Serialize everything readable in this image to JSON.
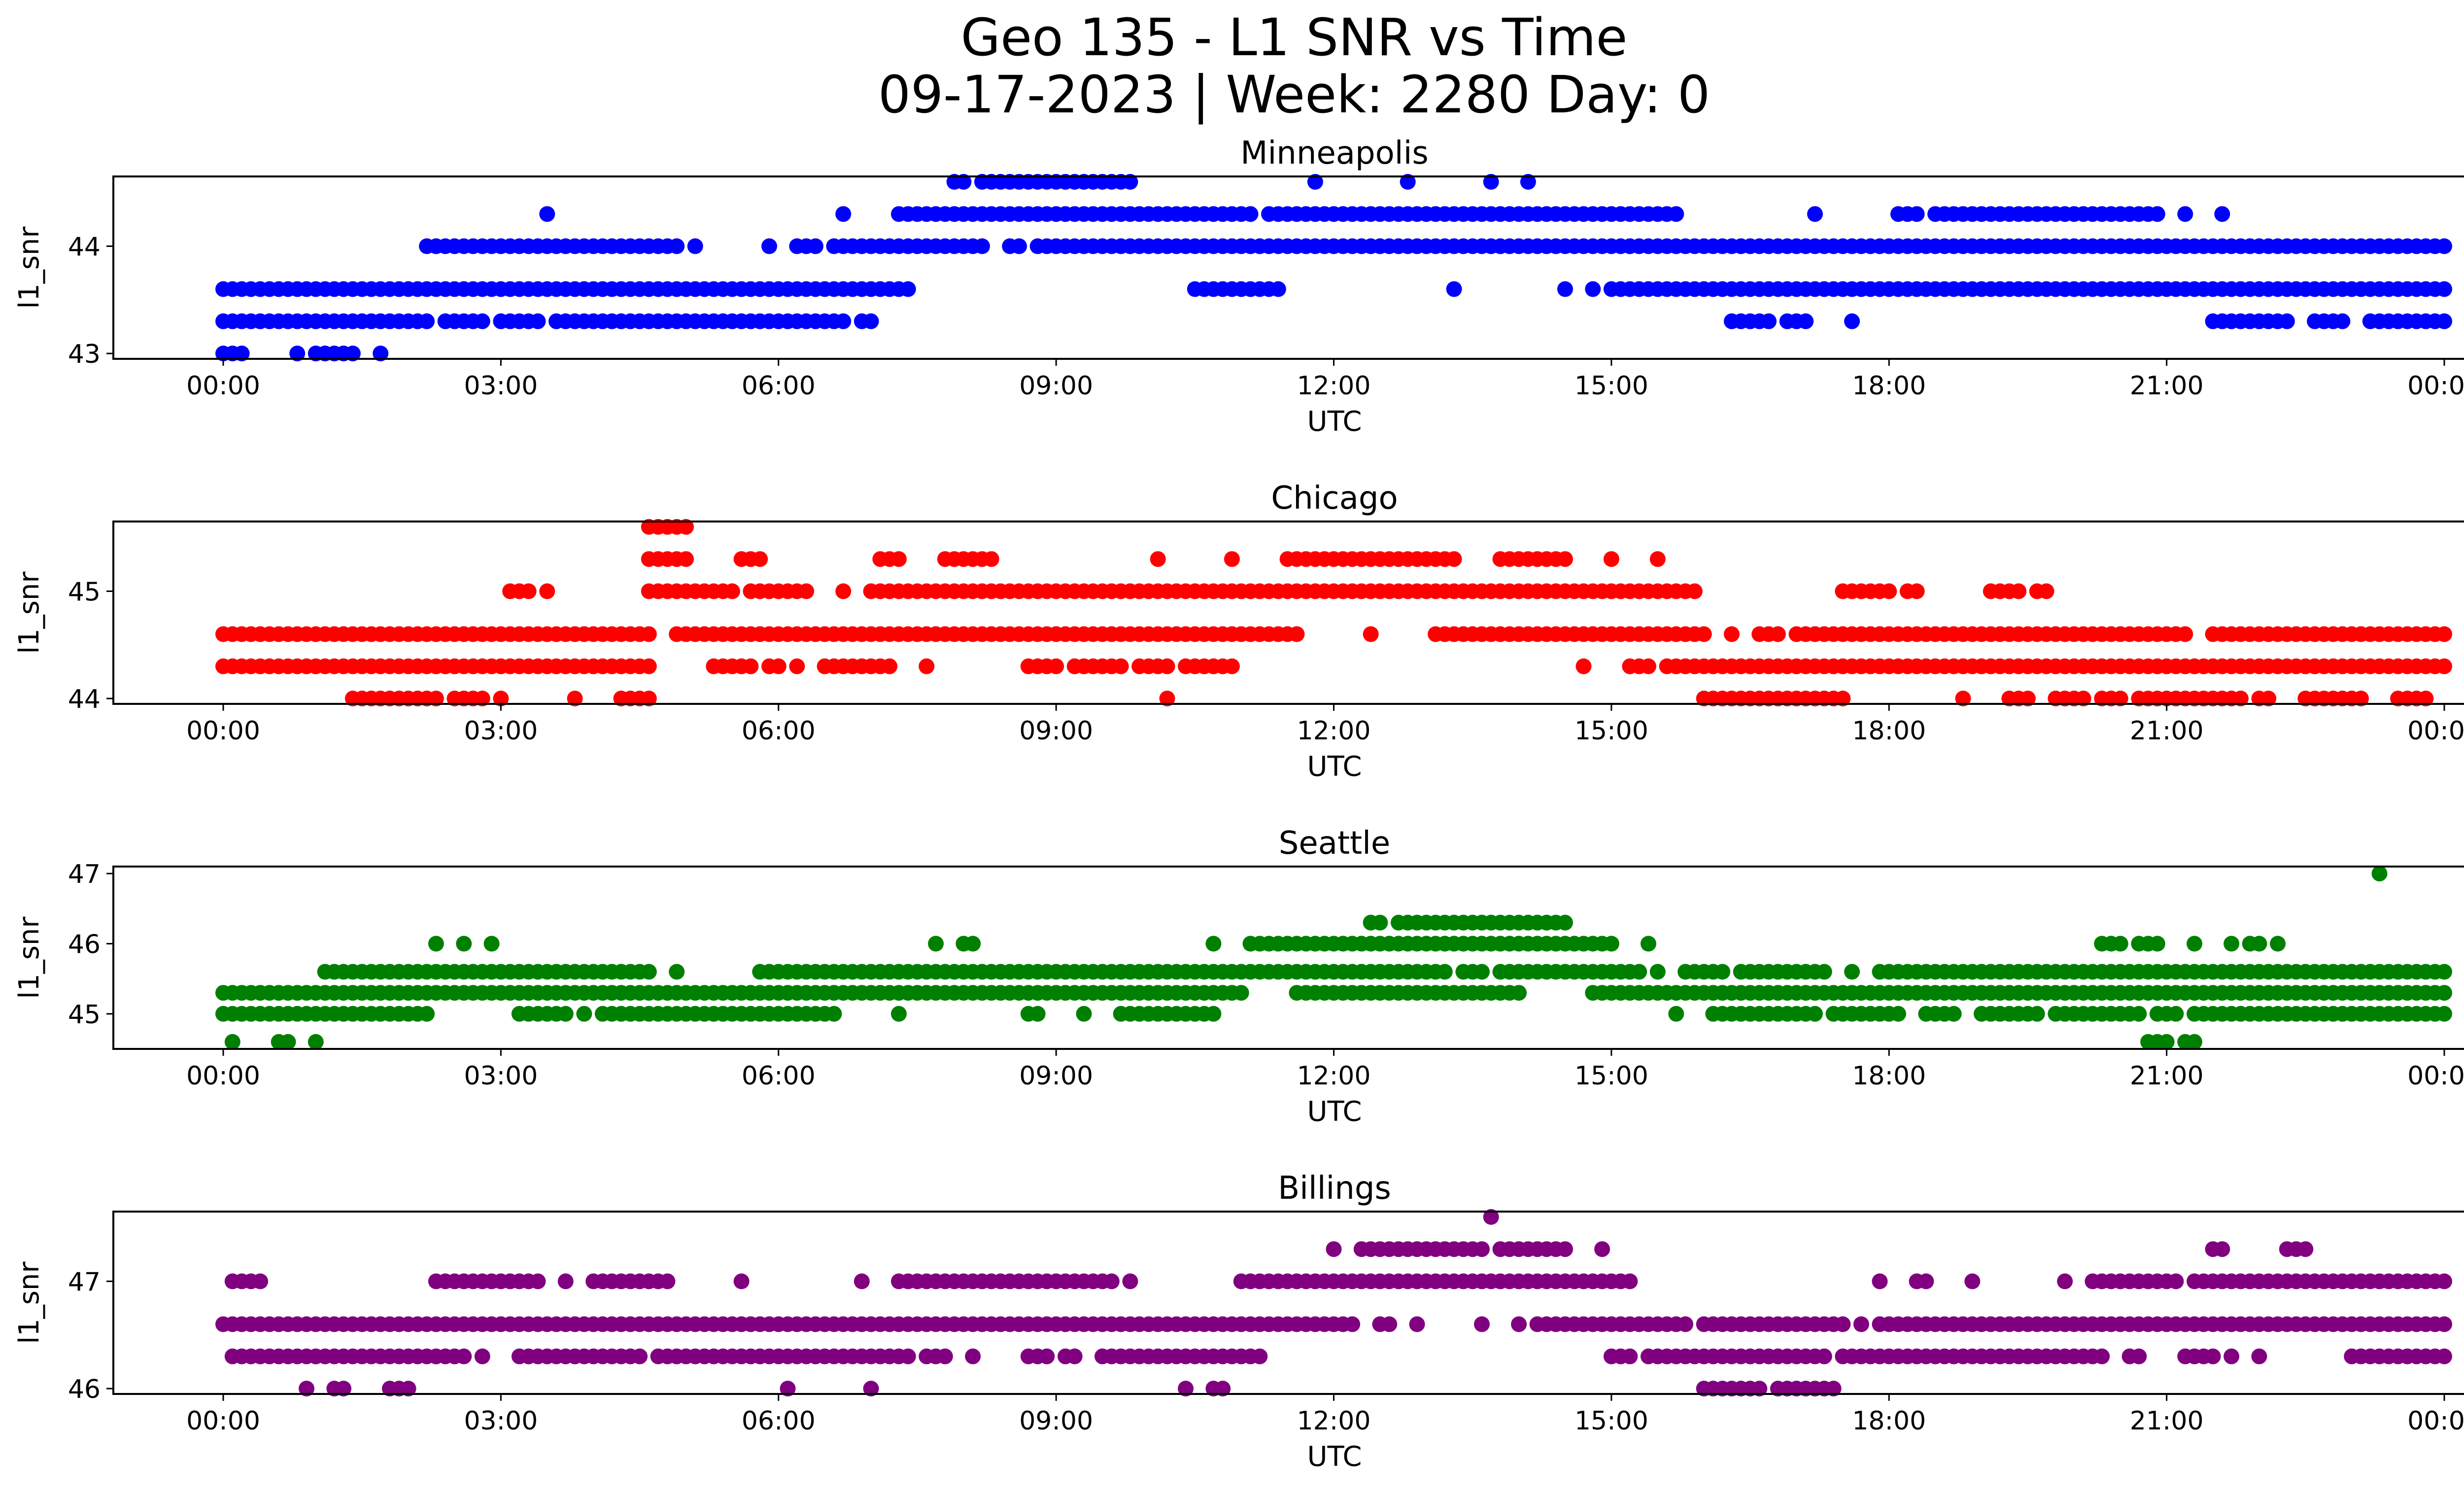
{
  "figure": {
    "title_line1": "Geo 135 - L1 SNR vs Time",
    "title_line2": "09-17-2023 | Week: 2280 Day: 0"
  },
  "chart_data": [
    {
      "type": "scatter",
      "title": "Minneapolis",
      "xlabel": "UTC",
      "ylabel": "l1_snr",
      "color": "#0000ff",
      "xlim": [
        0,
        24
      ],
      "ylim": [
        42.95,
        44.65
      ],
      "xticks": [
        "00:00",
        "03:00",
        "06:00",
        "09:00",
        "12:00",
        "15:00",
        "18:00",
        "21:00",
        "00:00"
      ],
      "yticks": [
        43,
        44
      ],
      "grid": false,
      "points": [
        {
          "y": 43.6,
          "x": [
            [
              0.0,
              7.4
            ],
            [
              10.5,
              11.4
            ],
            [
              15.0,
              24.0
            ]
          ]
        },
        {
          "y": 43.3,
          "x": [
            [
              0.0,
              2.2
            ],
            [
              2.4,
              2.8
            ],
            [
              3.0,
              3.4
            ],
            [
              3.6,
              6.7
            ],
            [
              6.9,
              7.0
            ],
            [
              16.3,
              16.7
            ],
            [
              16.9,
              17.1
            ],
            [
              17.6,
              17.6
            ],
            [
              21.5,
              22.3
            ],
            [
              22.6,
              22.9
            ],
            [
              23.2,
              24.0
            ]
          ]
        },
        {
          "y": 43.0,
          "x": [
            [
              0.0,
              0.2
            ],
            [
              0.8,
              0.8
            ],
            [
              1.0,
              1.4
            ],
            [
              1.7,
              1.7
            ]
          ]
        },
        {
          "y": 44.0,
          "x": [
            [
              2.2,
              4.2
            ],
            [
              4.3,
              4.9
            ],
            [
              5.1,
              5.1
            ],
            [
              5.9,
              5.9
            ],
            [
              6.2,
              6.4
            ],
            [
              6.6,
              8.2
            ],
            [
              8.5,
              8.6
            ],
            [
              8.8,
              24.0
            ]
          ]
        },
        {
          "y": 44.3,
          "x": [
            [
              3.5,
              3.5
            ],
            [
              6.7,
              6.7
            ],
            [
              7.3,
              10.8
            ],
            [
              10.9,
              11.1
            ],
            [
              11.3,
              15.7
            ],
            [
              17.2,
              17.2
            ],
            [
              18.1,
              18.3
            ],
            [
              18.5,
              20.9
            ],
            [
              21.2,
              21.2
            ],
            [
              21.6,
              21.6
            ]
          ]
        },
        {
          "y": 44.6,
          "x": [
            [
              7.9,
              8.0
            ],
            [
              8.2,
              9.0
            ],
            [
              9.1,
              9.8
            ],
            [
              11.8,
              11.8
            ],
            [
              12.8,
              12.8
            ],
            [
              13.7,
              13.7
            ],
            [
              14.1,
              14.1
            ]
          ]
        },
        {
          "y": 43.6,
          "x": [
            [
              13.3,
              13.3
            ],
            [
              14.5,
              14.5
            ],
            [
              14.8,
              14.8
            ]
          ]
        }
      ]
    },
    {
      "type": "scatter",
      "title": "Chicago",
      "xlabel": "UTC",
      "ylabel": "l1_snr",
      "color": "#ff0000",
      "xlim": [
        0,
        24
      ],
      "ylim": [
        43.95,
        45.65
      ],
      "xticks": [
        "00:00",
        "03:00",
        "06:00",
        "09:00",
        "12:00",
        "15:00",
        "18:00",
        "21:00",
        "00:00"
      ],
      "yticks": [
        44,
        45
      ],
      "grid": false,
      "points": [
        {
          "y": 44.6,
          "x": [
            [
              0.0,
              1.8
            ],
            [
              1.9,
              4.6
            ],
            [
              4.9,
              8.0
            ],
            [
              8.1,
              11.6
            ],
            [
              12.4,
              12.4
            ],
            [
              13.1,
              13.8
            ],
            [
              13.9,
              16.0
            ],
            [
              16.3,
              16.3
            ],
            [
              16.6,
              16.8
            ],
            [
              17.0,
              20.7
            ],
            [
              20.8,
              21.2
            ],
            [
              21.5,
              24.0
            ]
          ]
        },
        {
          "y": 44.3,
          "x": [
            [
              0.0,
              4.6
            ],
            [
              5.3,
              5.7
            ],
            [
              5.9,
              6.0
            ],
            [
              6.2,
              6.2
            ],
            [
              6.5,
              7.2
            ],
            [
              7.6,
              7.6
            ],
            [
              8.7,
              9.0
            ],
            [
              9.2,
              9.7
            ],
            [
              9.9,
              10.2
            ],
            [
              10.4,
              10.9
            ],
            [
              14.7,
              14.7
            ],
            [
              15.2,
              15.4
            ],
            [
              15.6,
              24.0
            ]
          ]
        },
        {
          "y": 44.0,
          "x": [
            [
              1.4,
              2.3
            ],
            [
              2.5,
              2.7
            ],
            [
              2.8,
              2.8
            ],
            [
              3.0,
              3.0
            ],
            [
              3.8,
              3.8
            ],
            [
              4.3,
              4.6
            ],
            [
              10.2,
              10.2
            ],
            [
              16.0,
              17.5
            ],
            [
              18.8,
              18.8
            ],
            [
              19.3,
              19.5
            ],
            [
              19.8,
              20.1
            ],
            [
              20.3,
              20.5
            ],
            [
              20.7,
              21.8
            ],
            [
              22.0,
              22.1
            ],
            [
              22.5,
              23.1
            ],
            [
              23.5,
              23.8
            ]
          ]
        },
        {
          "y": 45.0,
          "x": [
            [
              3.1,
              3.3
            ],
            [
              3.5,
              3.5
            ],
            [
              4.6,
              5.5
            ],
            [
              5.7,
              6.3
            ],
            [
              6.7,
              6.7
            ],
            [
              7.0,
              15.9
            ],
            [
              17.5,
              18.0
            ],
            [
              18.2,
              18.3
            ],
            [
              19.1,
              19.4
            ],
            [
              19.6,
              19.7
            ]
          ]
        },
        {
          "y": 45.3,
          "x": [
            [
              4.6,
              5.0
            ],
            [
              5.6,
              5.8
            ],
            [
              7.1,
              7.3
            ],
            [
              7.8,
              8.3
            ],
            [
              10.1,
              10.1
            ],
            [
              10.9,
              10.9
            ],
            [
              11.5,
              13.3
            ],
            [
              13.8,
              14.5
            ],
            [
              15.0,
              15.0
            ],
            [
              15.5,
              15.5
            ]
          ]
        },
        {
          "y": 45.6,
          "x": [
            [
              4.6,
              4.9
            ],
            [
              5.0,
              5.0
            ]
          ]
        }
      ]
    },
    {
      "type": "scatter",
      "title": "Seattle",
      "xlabel": "UTC",
      "ylabel": "l1_snr",
      "color": "#008000",
      "xlim": [
        0,
        24
      ],
      "ylim": [
        44.5,
        47.1
      ],
      "xticks": [
        "00:00",
        "03:00",
        "06:00",
        "09:00",
        "12:00",
        "15:00",
        "18:00",
        "21:00",
        "00:00"
      ],
      "yticks": [
        45,
        46,
        47
      ],
      "grid": false,
      "points": [
        {
          "y": 45.3,
          "x": [
            [
              0.0,
              11.0
            ],
            [
              11.6,
              14.0
            ],
            [
              14.8,
              24.0
            ]
          ]
        },
        {
          "y": 45.0,
          "x": [
            [
              0.0,
              1.2
            ],
            [
              1.3,
              2.2
            ],
            [
              3.2,
              3.7
            ],
            [
              3.9,
              3.9
            ],
            [
              4.1,
              6.6
            ],
            [
              7.3,
              7.3
            ],
            [
              8.7,
              8.8
            ],
            [
              9.3,
              9.3
            ],
            [
              9.7,
              10.2
            ],
            [
              10.3,
              10.7
            ],
            [
              15.7,
              15.7
            ],
            [
              16.1,
              17.2
            ],
            [
              17.4,
              18.1
            ],
            [
              18.4,
              18.7
            ],
            [
              19.0,
              19.6
            ],
            [
              19.8,
              20.7
            ],
            [
              20.9,
              21.1
            ],
            [
              21.3,
              24.0
            ]
          ]
        },
        {
          "y": 44.6,
          "x": [
            [
              0.1,
              0.1
            ],
            [
              0.6,
              0.7
            ],
            [
              1.0,
              1.0
            ],
            [
              20.8,
              21.0
            ],
            [
              21.2,
              21.3
            ]
          ]
        },
        {
          "y": 45.6,
          "x": [
            [
              1.1,
              4.6
            ],
            [
              4.9,
              4.9
            ],
            [
              5.8,
              11.9
            ],
            [
              12.0,
              13.2
            ],
            [
              13.4,
              13.6
            ],
            [
              13.8,
              15.3
            ],
            [
              15.5,
              15.5
            ],
            [
              15.8,
              16.2
            ],
            [
              16.4,
              17.3
            ],
            [
              17.6,
              17.6
            ],
            [
              17.9,
              24.0
            ]
          ]
        },
        {
          "y": 46.0,
          "x": [
            [
              2.3,
              2.3
            ],
            [
              2.6,
              2.6
            ],
            [
              2.9,
              2.9
            ],
            [
              7.7,
              7.7
            ],
            [
              8.0,
              8.1
            ],
            [
              10.7,
              10.7
            ],
            [
              11.1,
              15.0
            ],
            [
              15.4,
              15.4
            ],
            [
              20.3,
              20.5
            ],
            [
              20.7,
              20.9
            ],
            [
              21.3,
              21.3
            ],
            [
              21.7,
              21.7
            ],
            [
              21.9,
              22.0
            ],
            [
              22.2,
              22.2
            ]
          ]
        },
        {
          "y": 46.3,
          "x": [
            [
              12.4,
              12.5
            ],
            [
              12.7,
              13.2
            ],
            [
              13.3,
              13.8
            ],
            [
              13.9,
              14.3
            ],
            [
              14.4,
              14.5
            ]
          ]
        },
        {
          "y": 47.0,
          "x": [
            [
              23.3,
              23.3
            ]
          ]
        }
      ]
    },
    {
      "type": "scatter",
      "title": "Billings",
      "xlabel": "UTC",
      "ylabel": "l1_snr",
      "color": "#800080",
      "xlim": [
        0,
        24
      ],
      "ylim": [
        45.95,
        47.65
      ],
      "xticks": [
        "00:00",
        "03:00",
        "06:00",
        "09:00",
        "12:00",
        "15:00",
        "18:00",
        "21:00",
        "00:00"
      ],
      "yticks": [
        46,
        47
      ],
      "grid": false,
      "points": [
        {
          "y": 46.6,
          "x": [
            [
              0.0,
              12.2
            ],
            [
              12.5,
              12.6
            ],
            [
              12.9,
              12.9
            ],
            [
              13.6,
              13.6
            ],
            [
              14.0,
              14.0
            ],
            [
              14.2,
              15.8
            ],
            [
              16.0,
              16.8
            ],
            [
              16.9,
              17.5
            ],
            [
              17.7,
              17.7
            ],
            [
              17.9,
              24.0
            ]
          ]
        },
        {
          "y": 46.3,
          "x": [
            [
              0.1,
              2.6
            ],
            [
              2.8,
              2.8
            ],
            [
              3.2,
              4.5
            ],
            [
              4.7,
              7.4
            ],
            [
              7.6,
              7.8
            ],
            [
              8.1,
              8.1
            ],
            [
              8.7,
              8.9
            ],
            [
              9.1,
              9.2
            ],
            [
              9.5,
              10.0
            ],
            [
              10.1,
              11.2
            ],
            [
              15.0,
              15.2
            ],
            [
              15.4,
              17.3
            ],
            [
              17.5,
              20.3
            ],
            [
              20.6,
              20.7
            ],
            [
              21.2,
              21.5
            ],
            [
              21.7,
              21.7
            ],
            [
              22.0,
              22.0
            ],
            [
              23.0,
              23.6
            ],
            [
              23.7,
              24.0
            ]
          ]
        },
        {
          "y": 47.0,
          "x": [
            [
              0.1,
              0.4
            ],
            [
              2.3,
              3.4
            ],
            [
              3.7,
              3.7
            ],
            [
              4.0,
              4.8
            ],
            [
              5.6,
              5.6
            ],
            [
              6.9,
              6.9
            ],
            [
              7.3,
              8.8
            ],
            [
              8.9,
              9.6
            ],
            [
              9.8,
              9.8
            ],
            [
              11.0,
              15.2
            ],
            [
              17.9,
              17.9
            ],
            [
              18.3,
              18.4
            ],
            [
              18.9,
              18.9
            ],
            [
              19.9,
              19.9
            ],
            [
              20.2,
              21.1
            ],
            [
              21.3,
              24.0
            ]
          ]
        },
        {
          "y": 46.0,
          "x": [
            [
              0.9,
              0.9
            ],
            [
              1.2,
              1.3
            ],
            [
              1.8,
              2.0
            ],
            [
              6.1,
              6.1
            ],
            [
              7.0,
              7.0
            ],
            [
              10.4,
              10.4
            ],
            [
              10.7,
              10.8
            ],
            [
              16.0,
              16.6
            ],
            [
              16.8,
              17.4
            ]
          ]
        },
        {
          "y": 47.3,
          "x": [
            [
              12.0,
              12.0
            ],
            [
              12.3,
              13.6
            ],
            [
              13.8,
              14.5
            ],
            [
              14.9,
              14.9
            ],
            [
              21.5,
              21.6
            ],
            [
              22.3,
              22.5
            ]
          ]
        },
        {
          "y": 47.6,
          "x": [
            [
              13.7,
              13.7
            ]
          ]
        }
      ]
    }
  ]
}
